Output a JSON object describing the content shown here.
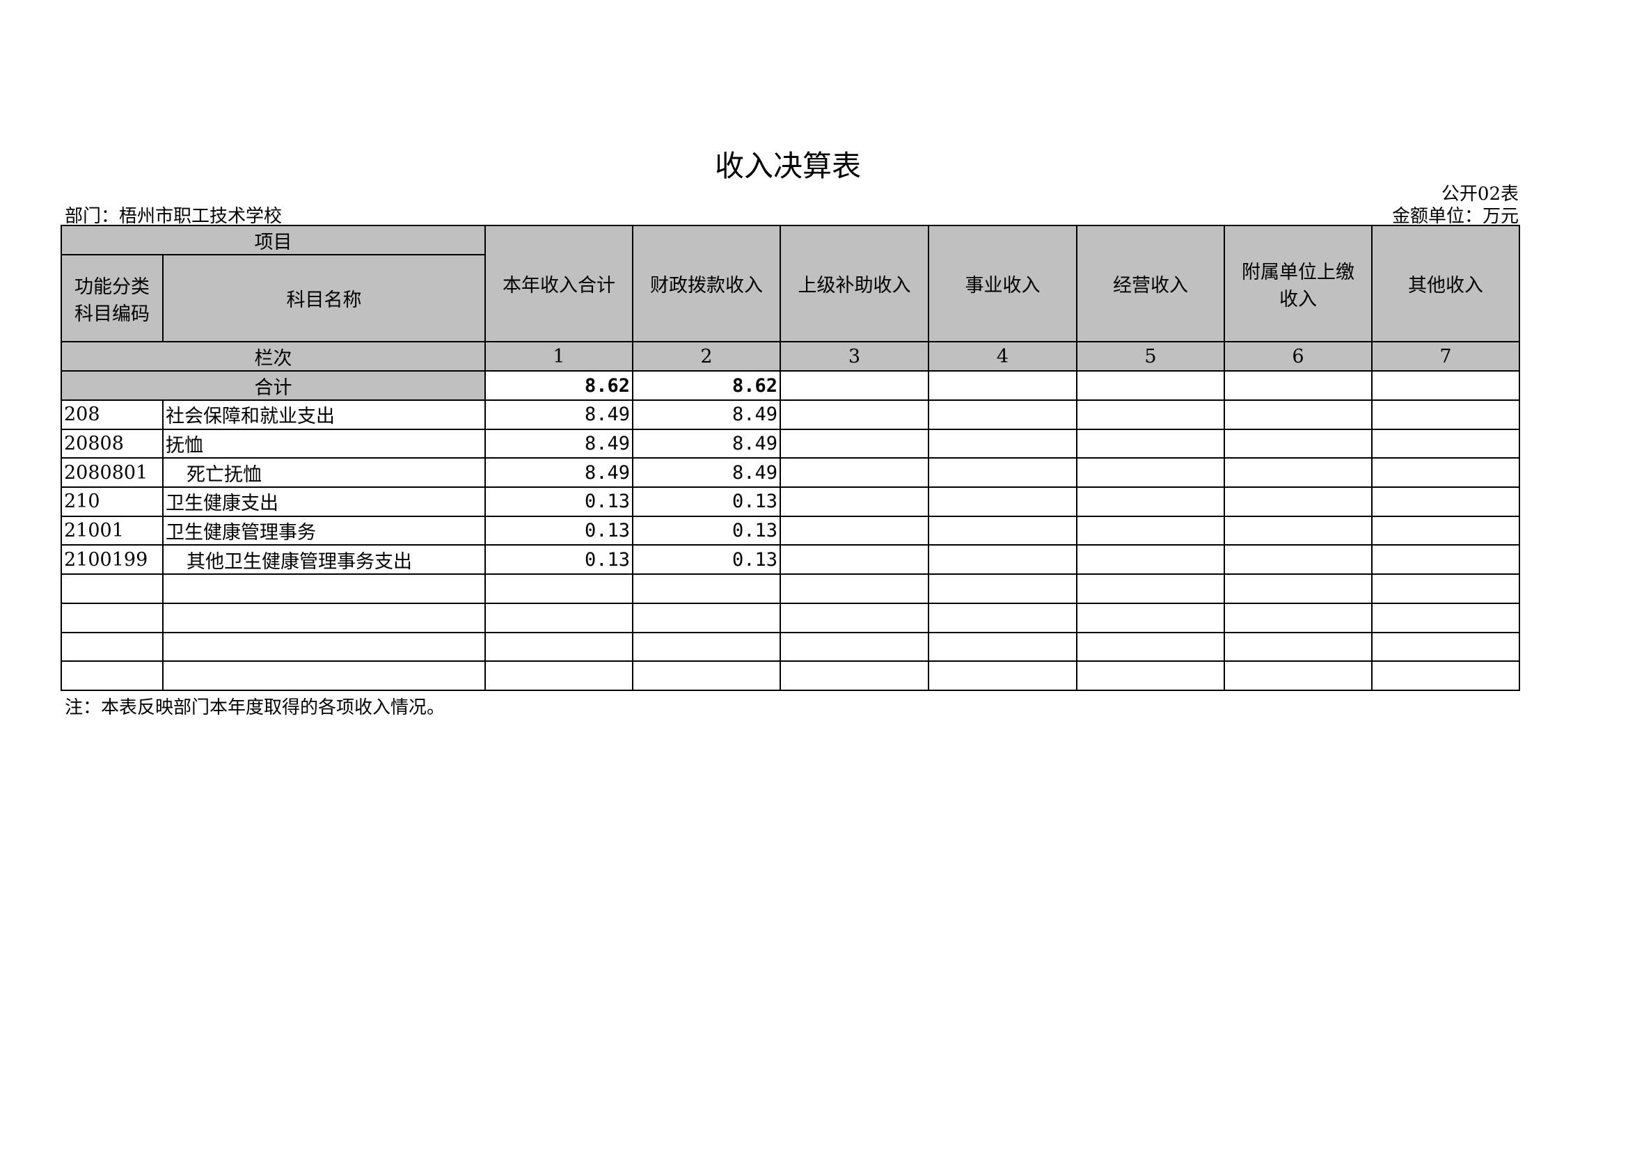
{
  "title": "收入决算表",
  "form_no": "公开02表",
  "department": "部门：梧州市职工技术学校",
  "unit": "金额单位：万元",
  "header": {
    "project": "项目",
    "code": "功能分类科目编码",
    "name": "科目名称",
    "columns": [
      "本年收入合计",
      "财政拨款收入",
      "上级补助收入",
      "事业收入",
      "经营收入",
      "附属单位上缴收入",
      "其他收入"
    ],
    "column_no_label": "栏次",
    "column_nos": [
      "1",
      "2",
      "3",
      "4",
      "5",
      "6",
      "7"
    ]
  },
  "total": {
    "label": "合计",
    "values": [
      "8.62",
      "8.62",
      "",
      "",
      "",
      "",
      ""
    ]
  },
  "rows": [
    {
      "code": "208",
      "name": "社会保障和就业支出",
      "indent": false,
      "values": [
        "8.49",
        "8.49",
        "",
        "",
        "",
        "",
        ""
      ]
    },
    {
      "code": "20808",
      "name": "抚恤",
      "indent": false,
      "values": [
        "8.49",
        "8.49",
        "",
        "",
        "",
        "",
        ""
      ]
    },
    {
      "code": "2080801",
      "name": "死亡抚恤",
      "indent": true,
      "values": [
        "8.49",
        "8.49",
        "",
        "",
        "",
        "",
        ""
      ]
    },
    {
      "code": "210",
      "name": "卫生健康支出",
      "indent": false,
      "values": [
        "0.13",
        "0.13",
        "",
        "",
        "",
        "",
        ""
      ]
    },
    {
      "code": "21001",
      "name": "卫生健康管理事务",
      "indent": false,
      "values": [
        "0.13",
        "0.13",
        "",
        "",
        "",
        "",
        ""
      ]
    },
    {
      "code": "2100199",
      "name": "其他卫生健康管理事务支出",
      "indent": true,
      "values": [
        "0.13",
        "0.13",
        "",
        "",
        "",
        "",
        ""
      ]
    }
  ],
  "empty_rows": 4,
  "note": "注：本表反映部门本年度取得的各项收入情况。"
}
